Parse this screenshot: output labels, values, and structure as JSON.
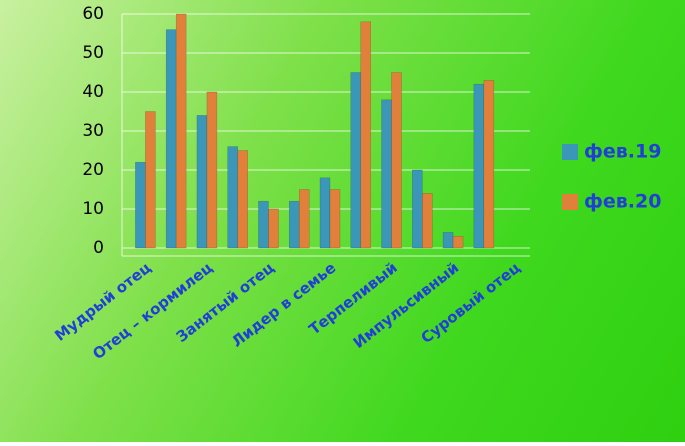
{
  "chart_data": {
    "type": "bar",
    "categories": [
      "Мудрый отец",
      null,
      "Отец – кормилец",
      null,
      "Занятый отец",
      null,
      "Лидер в семье",
      null,
      "Терпеливый",
      null,
      "Импульсивный",
      null,
      "Суровый отец"
    ],
    "series": [
      {
        "name": "фев.19",
        "color": "#3a97b8",
        "values": [
          22,
          56,
          34,
          26,
          12,
          12,
          18,
          45,
          38,
          20,
          4,
          42,
          0
        ]
      },
      {
        "name": "фев.20",
        "color": "#e0803a",
        "values": [
          35,
          60,
          40,
          25,
          10,
          15,
          15,
          58,
          45,
          14,
          3,
          43,
          0
        ]
      }
    ],
    "ylim": [
      0,
      60
    ],
    "yticks": [
      0,
      10,
      20,
      30,
      40,
      50,
      60
    ],
    "grid": true,
    "legend": "right"
  }
}
